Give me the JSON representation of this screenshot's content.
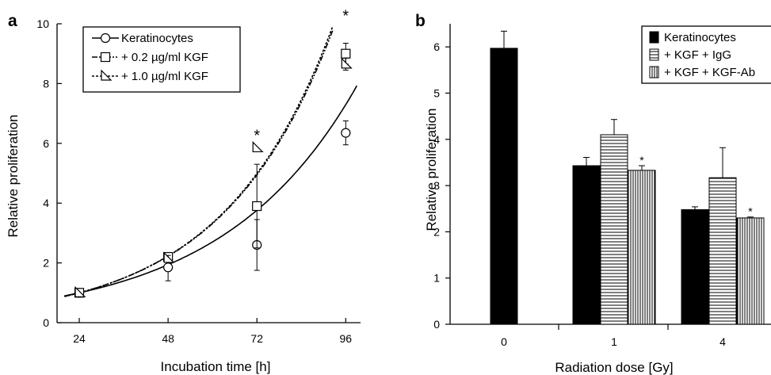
{
  "chart_data": [
    {
      "panel": "a",
      "type": "line",
      "xlabel": "Incubation time [h]",
      "ylabel": "Relative proliferation",
      "xlim": [
        18,
        100
      ],
      "ylim": [
        0,
        10
      ],
      "x_ticks": [
        24,
        48,
        72,
        96
      ],
      "y_ticks": [
        0,
        2,
        4,
        6,
        8,
        10
      ],
      "legend_position": "top-left",
      "series": [
        {
          "name": "Keratinocytes",
          "marker": "circle",
          "line_style": "solid",
          "points": [
            {
              "x": 24,
              "y": 1.0,
              "err": 0.05
            },
            {
              "x": 48,
              "y": 1.85,
              "err": 0.45
            },
            {
              "x": 72,
              "y": 2.6,
              "err": 0.85
            },
            {
              "x": 96,
              "y": 6.35,
              "err": 0.4
            }
          ],
          "fit_growth": 0.0276
        },
        {
          "name": "+ 0.2 µg/ml KGF",
          "marker": "square",
          "line_style": "dash-dot",
          "points": [
            {
              "x": 24,
              "y": 1.0,
              "err": 0.05
            },
            {
              "x": 48,
              "y": 2.2,
              "err": 0.1
            },
            {
              "x": 72,
              "y": 3.9,
              "err": 1.4
            },
            {
              "x": 96,
              "y": 9.0,
              "err": 0.35
            }
          ],
          "fit_growth": 0.0333
        },
        {
          "name": "+ 1.0 µg/ml KGF",
          "marker": "triangle",
          "line_style": "dotted",
          "points": [
            {
              "x": 24,
              "y": 1.0,
              "err": 0.05
            },
            {
              "x": 48,
              "y": 2.15,
              "err": 0.1
            },
            {
              "x": 72,
              "y": 5.85,
              "err": 0.0
            },
            {
              "x": 96,
              "y": 8.65,
              "err": 0.2
            }
          ],
          "fit_growth": 0.0335
        }
      ],
      "annotations": [
        {
          "text": "*",
          "x": 72,
          "y": 6.3
        },
        {
          "text": "*",
          "x": 96,
          "y": 10.3
        }
      ]
    },
    {
      "panel": "b",
      "type": "bar",
      "xlabel": "Radiation dose [Gy]",
      "ylabel": "Relative proliferation",
      "categories": [
        "0",
        "1",
        "4"
      ],
      "ylim": [
        0,
        6.5
      ],
      "y_ticks": [
        0,
        1,
        2,
        3,
        4,
        5,
        6
      ],
      "legend_position": "top-right",
      "series": [
        {
          "name": "Keratinocytes",
          "fill": "solid-black",
          "values": [
            5.97,
            3.43,
            2.48
          ],
          "errors": [
            0.37,
            0.18,
            0.06
          ]
        },
        {
          "name": "+ KGF + IgG",
          "fill": "horizontal-stripes",
          "values": [
            null,
            4.1,
            3.17
          ],
          "errors": [
            null,
            0.33,
            0.65
          ]
        },
        {
          "name": "+ KGF + KGF-Ab",
          "fill": "vertical-stripes",
          "values": [
            null,
            3.33,
            2.3
          ],
          "errors": [
            null,
            0.1,
            0.02
          ]
        }
      ],
      "annotations": [
        {
          "text": "*",
          "category": "1",
          "series": "+ KGF + KGF-Ab"
        },
        {
          "text": "*",
          "category": "4",
          "series": "+ KGF + KGF-Ab"
        }
      ]
    }
  ]
}
